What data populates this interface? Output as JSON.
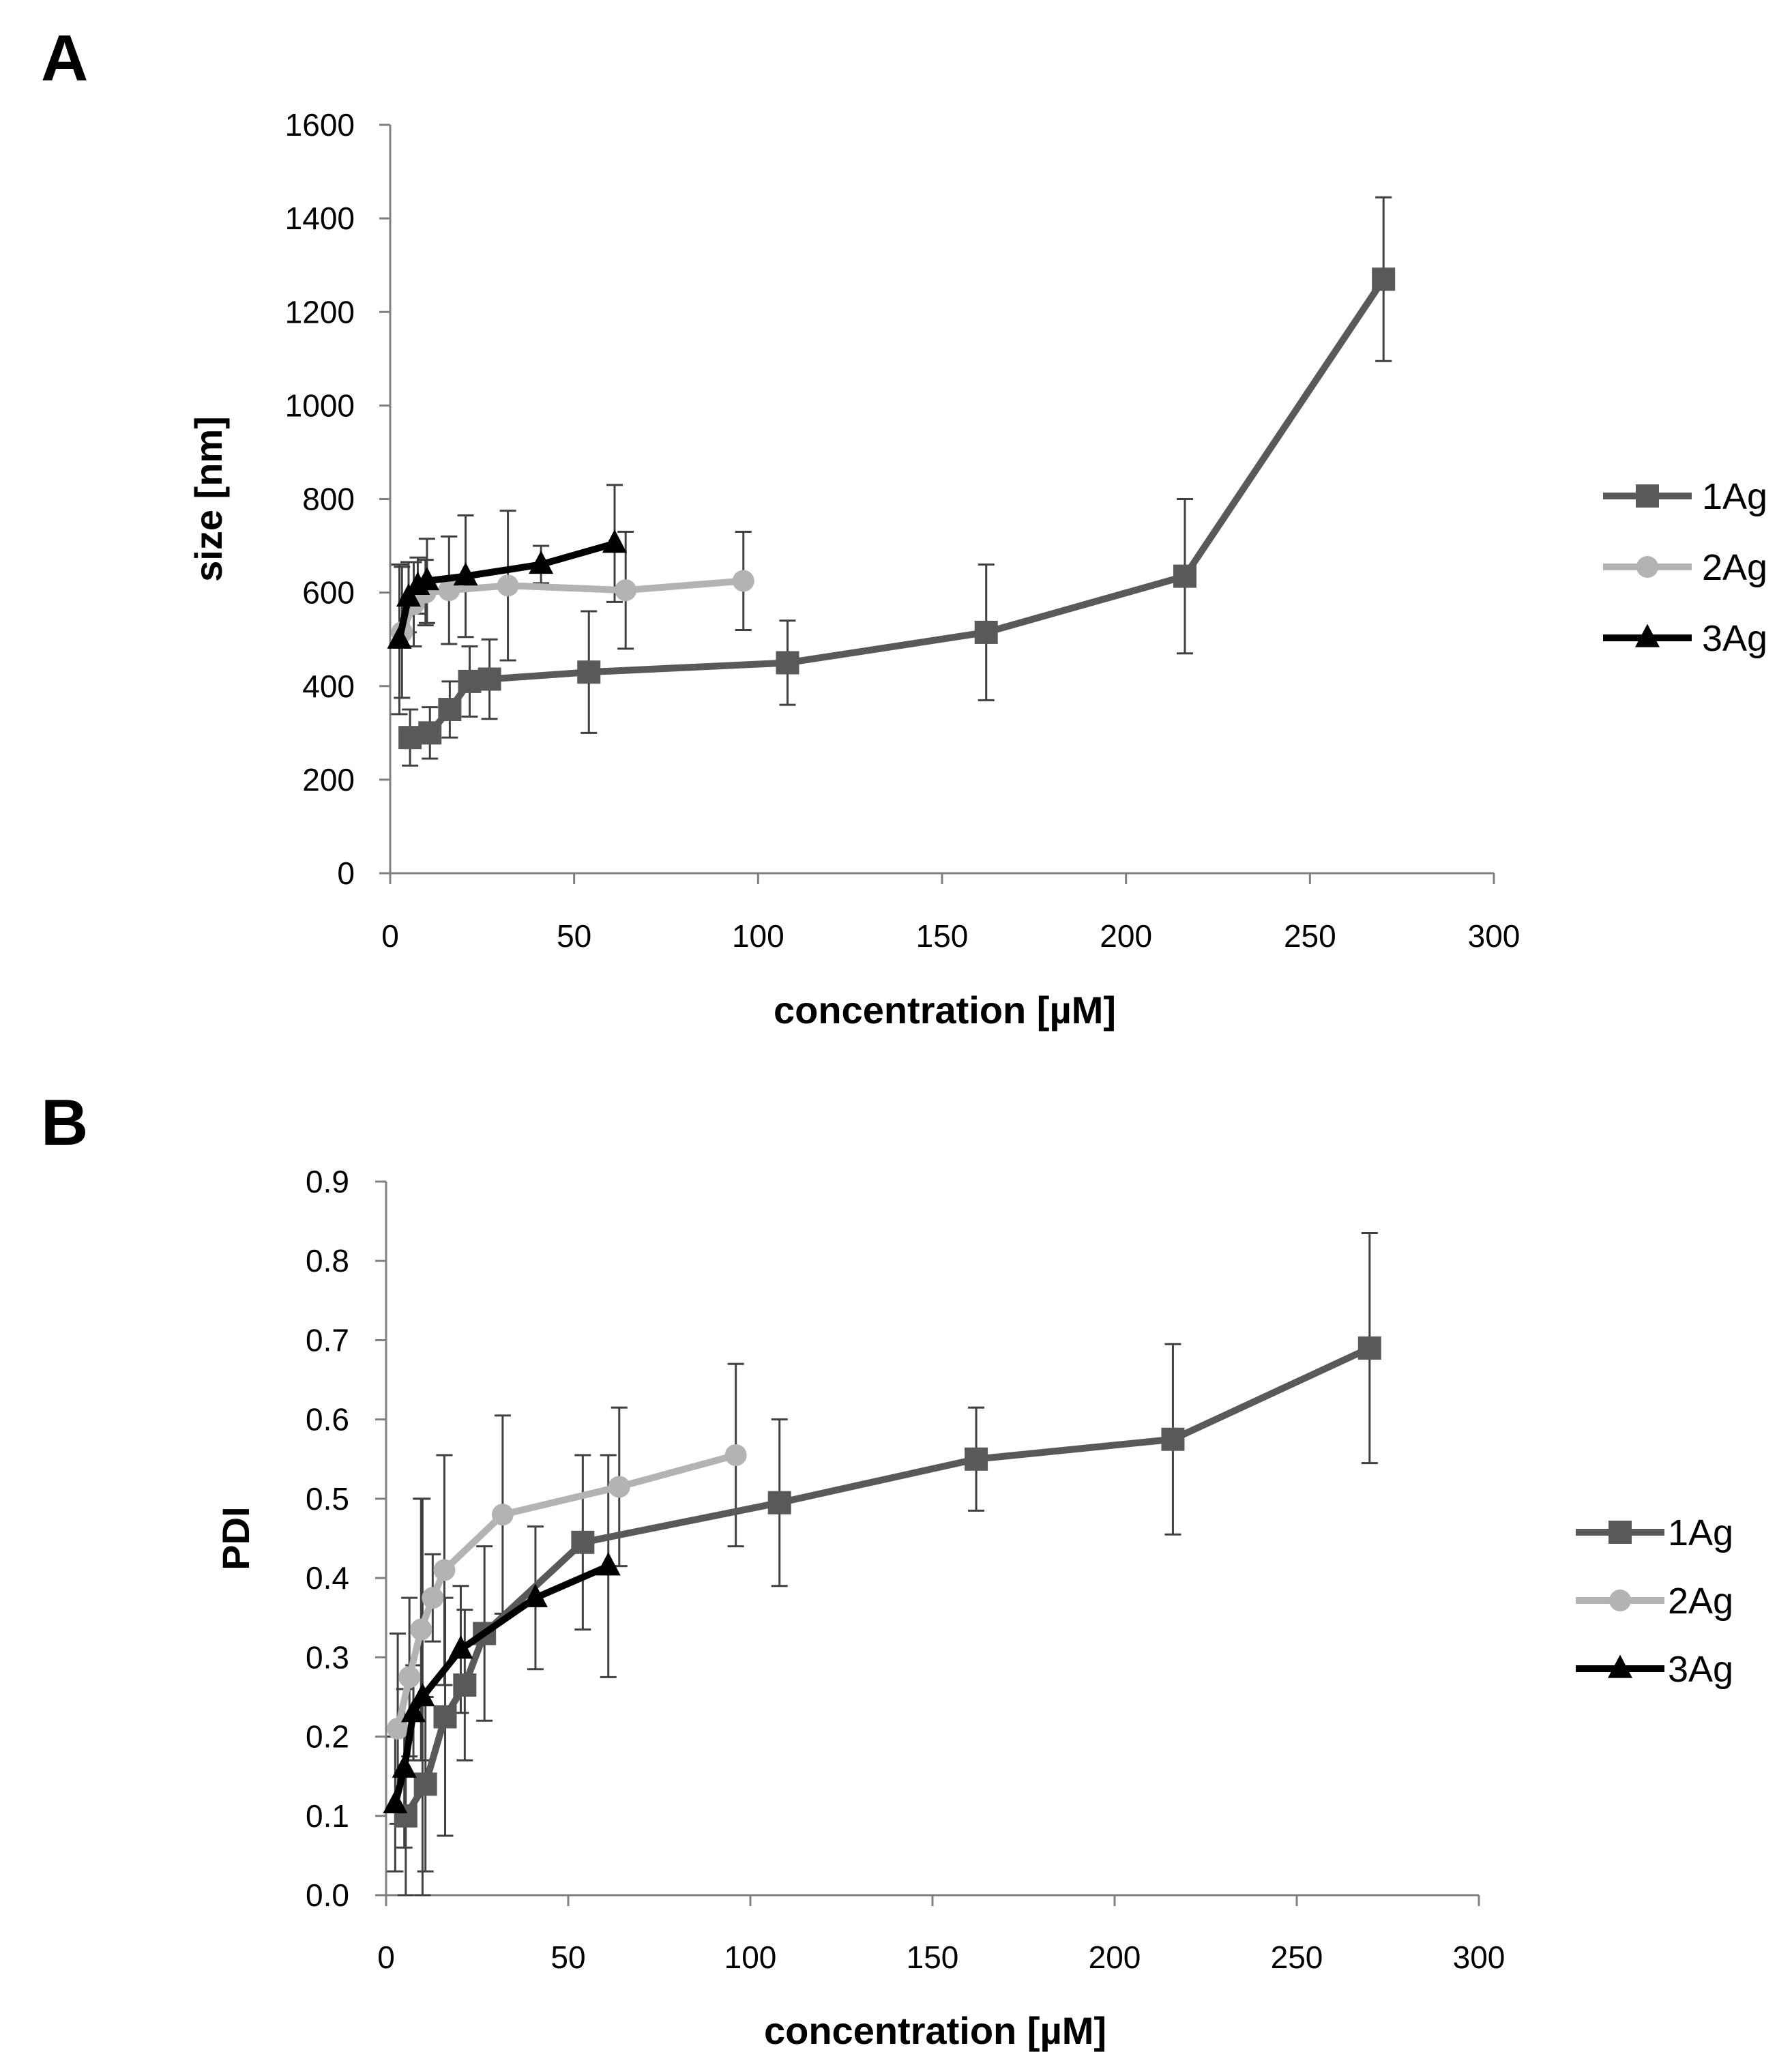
{
  "colors": {
    "1Ag": "#595959",
    "2Ag": "#b3b3b3",
    "3Ag": "#000000",
    "axis": "#808080",
    "errorbar": "#404040"
  },
  "chart_data": [
    {
      "panel": "A",
      "type": "line",
      "xlabel": "concentration [µM]",
      "ylabel": "size [nm]",
      "xlim": [
        0,
        300
      ],
      "ylim": [
        0,
        1600
      ],
      "xticks": [
        0,
        50,
        100,
        150,
        200,
        250,
        300
      ],
      "yticks": [
        0,
        200,
        400,
        600,
        800,
        1000,
        1200,
        1400,
        1600
      ],
      "ytick_decimals": 0,
      "grid": false,
      "legend": "right",
      "series": [
        {
          "name": "1Ag",
          "marker": "square",
          "x": [
            5.4,
            10.8,
            16.2,
            21.6,
            27,
            54,
            108,
            162,
            216,
            270
          ],
          "y": [
            290,
            300,
            350,
            410,
            415,
            430,
            450,
            515,
            635,
            1270
          ],
          "err": [
            60,
            55,
            60,
            75,
            85,
            130,
            90,
            145,
            165,
            175
          ]
        },
        {
          "name": "2Ag",
          "marker": "circle",
          "x": [
            3.2,
            6.4,
            9.6,
            16,
            32,
            64,
            96
          ],
          "y": [
            515,
            575,
            600,
            605,
            615,
            605,
            625
          ],
          "err": [
            140,
            90,
            70,
            115,
            160,
            125,
            105
          ]
        },
        {
          "name": "3Ag",
          "marker": "triangle",
          "x": [
            2.5,
            5,
            7.5,
            10,
            20.5,
            41,
            61
          ],
          "y": [
            500,
            590,
            615,
            625,
            635,
            660,
            705
          ],
          "err": [
            160,
            75,
            60,
            90,
            130,
            40,
            125
          ]
        }
      ]
    },
    {
      "panel": "B",
      "type": "line",
      "xlabel": "concentration [µM]",
      "ylabel": "PDI",
      "xlim": [
        0,
        300
      ],
      "ylim": [
        0,
        0.9
      ],
      "xticks": [
        0,
        50,
        100,
        150,
        200,
        250,
        300
      ],
      "yticks": [
        0,
        0.1,
        0.2,
        0.3,
        0.4,
        0.5,
        0.6,
        0.7,
        0.8,
        0.9
      ],
      "ytick_decimals": 1,
      "grid": false,
      "legend": "right",
      "series": [
        {
          "name": "1Ag",
          "marker": "square",
          "x": [
            5.4,
            10.8,
            16.2,
            21.6,
            27,
            54,
            108,
            162,
            216,
            270
          ],
          "y": [
            0.1,
            0.14,
            0.225,
            0.265,
            0.33,
            0.445,
            0.495,
            0.55,
            0.575,
            0.69
          ],
          "err": [
            0.1,
            0.11,
            0.15,
            0.095,
            0.11,
            0.11,
            0.105,
            0.065,
            0.12,
            0.145
          ]
        },
        {
          "name": "2Ag",
          "marker": "circle",
          "x": [
            3.2,
            6.4,
            9.6,
            12.8,
            16,
            32,
            64,
            96
          ],
          "y": [
            0.21,
            0.275,
            0.335,
            0.375,
            0.41,
            0.48,
            0.515,
            0.555
          ],
          "err": [
            0.12,
            0.1,
            0.165,
            0.055,
            0.145,
            0.125,
            0.1,
            0.115
          ]
        },
        {
          "name": "3Ag",
          "marker": "triangle",
          "x": [
            2.5,
            5,
            7.5,
            10,
            20.5,
            41,
            61
          ],
          "y": [
            0.115,
            0.16,
            0.23,
            0.25,
            0.31,
            0.375,
            0.415
          ],
          "err": [
            0.085,
            0.1,
            0.06,
            0.25,
            0.08,
            0.09,
            0.14
          ]
        }
      ]
    }
  ]
}
